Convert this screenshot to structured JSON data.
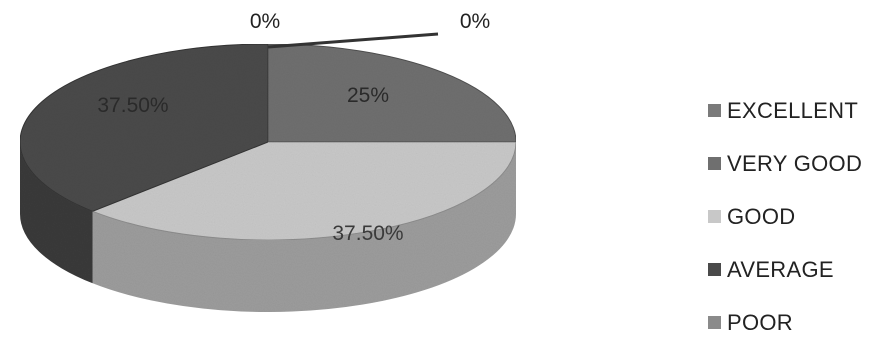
{
  "chart_data": {
    "type": "pie",
    "categories": [
      "EXCELLENT",
      "VERY GOOD",
      "GOOD",
      "AVERAGE",
      "POOR"
    ],
    "values": [
      0,
      25,
      37.5,
      37.5,
      0
    ],
    "data_labels": [
      "0%",
      "25%",
      "37.50%",
      "37.50%",
      "0%"
    ],
    "colors": [
      "#7a7a7a",
      "#6f6f6f",
      "#c8c8c8",
      "#4a4a4a",
      "#8a8a8a"
    ],
    "legend": "right",
    "style": "3d-pie"
  }
}
